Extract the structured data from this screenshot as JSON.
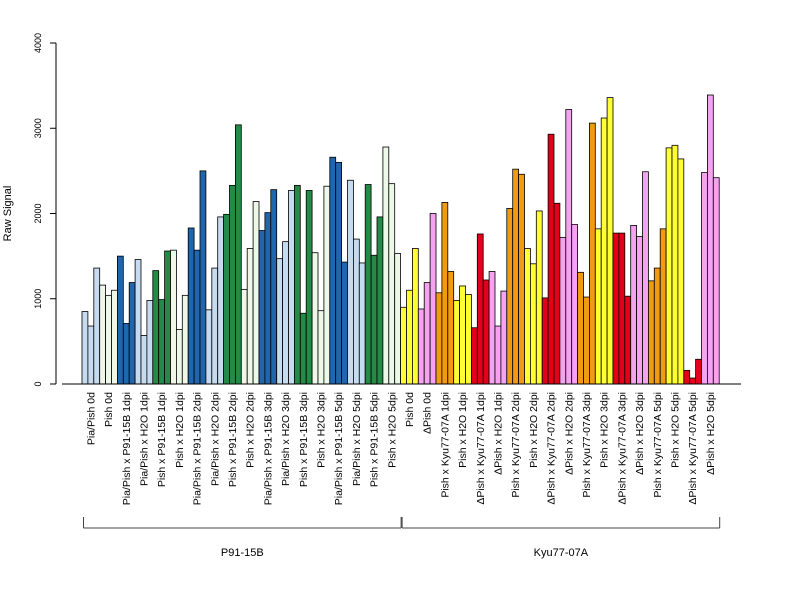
{
  "chart_data": {
    "type": "bar",
    "ylabel": "Raw Signal",
    "ylim": [
      0,
      4000
    ],
    "yticks": [
      "0",
      "1000",
      "2000",
      "3000",
      "4000"
    ],
    "categories": [
      "Pia/Pish 0d",
      "Pish 0d",
      "Pia/Pish x P91-15B 1dpi",
      "Pia/Pish x H2O 1dpi",
      "Pish x P91-15B 1dpi",
      "Pish x H2O 1dpi",
      "Pia/Pish x P91-15B 2dpi",
      "Pia/Pish x H2O 2dpi",
      "Pish x P91-15B 2dpi",
      "Pish x H2O 2dpi",
      "Pia/Pish x P91-15B 3dpi",
      "Pia/Pish x H2O 3dpi",
      "Pish x P91-15B 3dpi",
      "Pish x H2O 3dpi",
      "Pia/Pish x P91-15B 5dpi",
      "Pia/Pish x H2O 5dpi",
      "Pish x P91-15B 5dpi",
      "Pish x H2O 5dpi",
      "Pish 0d",
      "ΔPish 0d",
      "Pish x Kyu77-07A 1dpi",
      "Pish x H2O 1dpi",
      "ΔPish x Kyu77-07A 1dpi",
      "ΔPish x H2O 1dpi",
      "Pish x Kyu77-07A 2dpi",
      "Pish x H2O 2dpi",
      "ΔPish x Kyu77-07A 2dpi",
      "ΔPish x H2O 2dpi",
      "Pish x Kyu77-07A 3dpi",
      "Pish x H2O 3dpi",
      "ΔPish x Kyu77-07A 3dpi",
      "ΔPish x H2O 3dpi",
      "Pish x Kyu77-07A 5dpi",
      "Pish x H2O 5dpi",
      "ΔPish x Kyu77-07A 5dpi",
      "ΔPish x H2O 5dpi"
    ],
    "values": [
      [
        850,
        680,
        1360
      ],
      [
        1160,
        1040,
        1100
      ],
      [
        1500,
        710,
        1190
      ],
      [
        1460,
        570,
        980
      ],
      [
        1330,
        990,
        1560
      ],
      [
        1570,
        640,
        1040
      ],
      [
        1830,
        1570,
        2500
      ],
      [
        870,
        1360,
        1960
      ],
      [
        1990,
        2330,
        3040
      ],
      [
        1110,
        1590,
        2140
      ],
      [
        1800,
        2010,
        2280
      ],
      [
        1470,
        1670,
        2270
      ],
      [
        2330,
        830,
        2270
      ],
      [
        1540,
        860,
        2320
      ],
      [
        2660,
        2600,
        1430
      ],
      [
        2390,
        1700,
        1420
      ],
      [
        2340,
        1510,
        1960
      ],
      [
        2780,
        2350,
        1530
      ],
      [
        900,
        1100,
        1590
      ],
      [
        880,
        1190,
        2000
      ],
      [
        1070,
        2130,
        1320
      ],
      [
        980,
        1150,
        1050
      ],
      [
        660,
        1760,
        1220
      ],
      [
        1320,
        680,
        1090
      ],
      [
        2060,
        2520,
        2460
      ],
      [
        1590,
        1410,
        2030
      ],
      [
        1010,
        2930,
        2120
      ],
      [
        1720,
        3220,
        1870
      ],
      [
        1310,
        1020,
        3060
      ],
      [
        1820,
        3120,
        3360
      ],
      [
        1770,
        1770,
        1030
      ],
      [
        1860,
        1730,
        2490
      ],
      [
        1210,
        1360,
        1820
      ],
      [
        2770,
        2800,
        2640
      ],
      [
        160,
        70,
        290
      ],
      [
        2480,
        3390,
        2420
      ]
    ],
    "bar_colors": [
      "#c6dbef",
      "#edf8e9",
      "#2166ac",
      "#c6dbef",
      "#238b45",
      "#edf8e9",
      "#2166ac",
      "#c6dbef",
      "#238b45",
      "#edf8e9",
      "#2166ac",
      "#c6dbef",
      "#238b45",
      "#edf8e9",
      "#2166ac",
      "#c6dbef",
      "#238b45",
      "#edf8e9",
      "#ffff33",
      "#f5a3f0",
      "#f29a11",
      "#ffff33",
      "#e3001b",
      "#f5a3f0",
      "#f29a11",
      "#ffff33",
      "#e3001b",
      "#f5a3f0",
      "#f29a11",
      "#ffff33",
      "#e3001b",
      "#f5a3f0",
      "#f29a11",
      "#ffff33",
      "#e3001b",
      "#f5a3f0"
    ],
    "groups": [
      {
        "label": "P91-15B",
        "start": 0,
        "end": 17
      },
      {
        "label": "Kyu77-07A",
        "start": 18,
        "end": 35
      }
    ],
    "grid": false
  }
}
